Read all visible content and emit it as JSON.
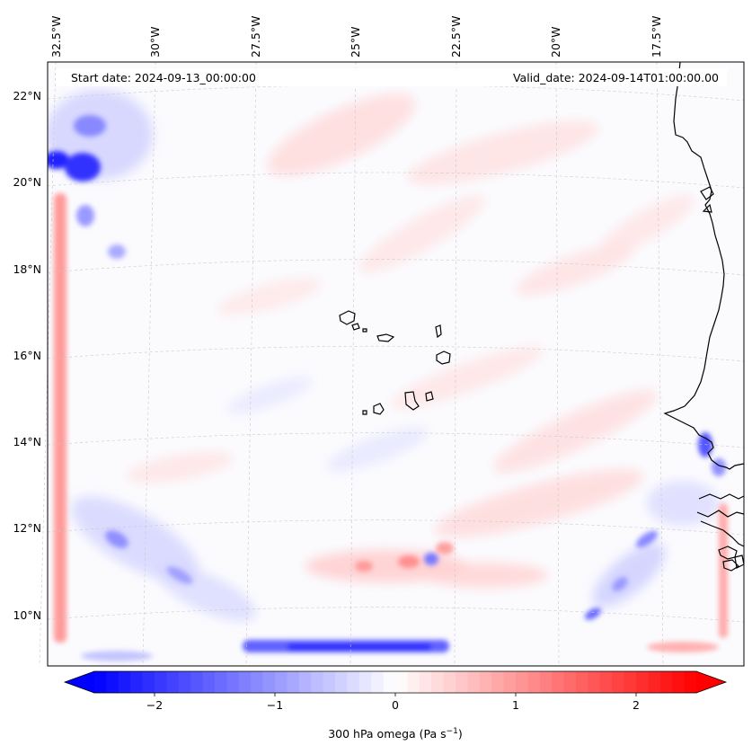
{
  "map": {
    "start_date_label": "Start date: 2024-09-13_00:00:00",
    "valid_date_label": "Valid_date: 2024-09-14T01:00:00.00",
    "longitude_labels": [
      "32.5°W",
      "30°W",
      "27.5°W",
      "25°W",
      "22.5°W",
      "20°W",
      "17.5°W"
    ],
    "latitude_labels": [
      "22°N",
      "20°N",
      "18°N",
      "16°N",
      "14°N",
      "12°N",
      "10°N"
    ],
    "variable": "300 hPa omega",
    "units": "Pa s⁻¹"
  },
  "colorbar": {
    "label_text": "300 hPa omega (Pa s",
    "label_sup": "−1",
    "label_close": ")",
    "ticks": [
      "−2",
      "−1",
      "0",
      "1",
      "2"
    ],
    "tick_values": [
      -2,
      -1,
      0,
      1,
      2
    ],
    "range": [
      -2.5,
      2.5
    ],
    "colormap": "bwr",
    "low_color": "#0000ff",
    "mid_color": "#ffffff",
    "high_color": "#ff0000"
  }
}
